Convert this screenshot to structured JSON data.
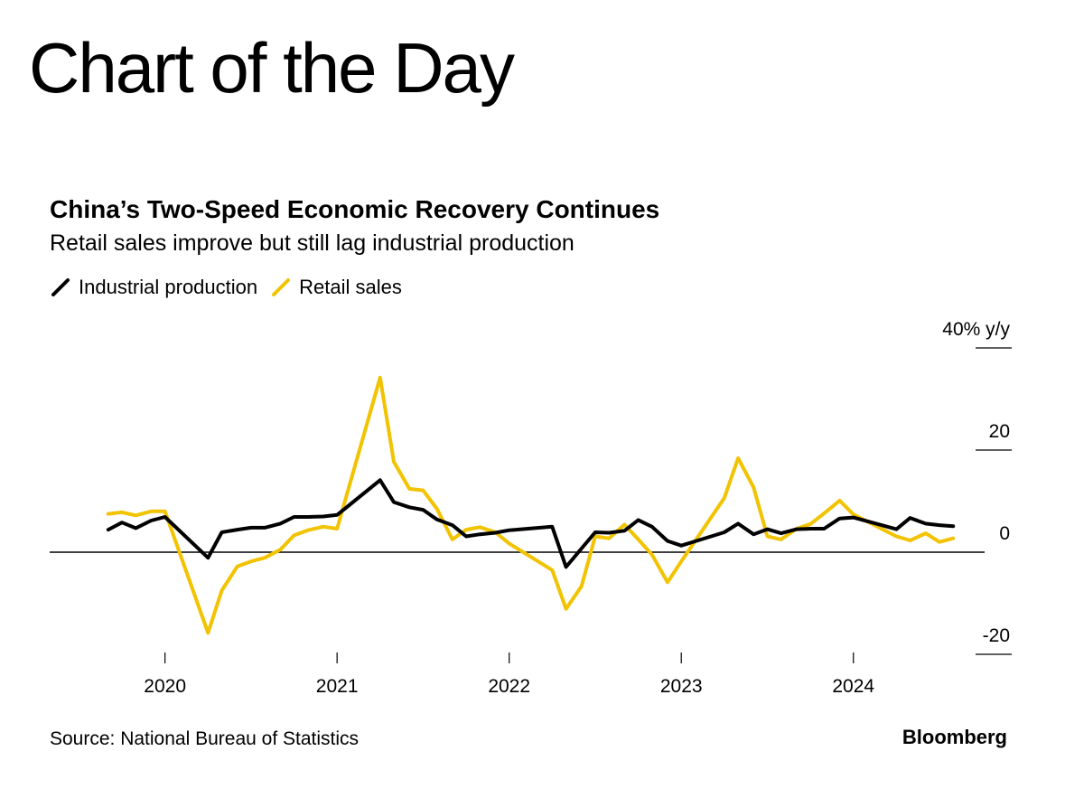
{
  "header": {
    "title": "Chart of the Day"
  },
  "chart_data": {
    "type": "line",
    "title": "China’s Two-Speed Economic Recovery Continues",
    "subtitle": "Retail sales improve but still lag industrial production",
    "unit_label": "40% y/y",
    "y_ticks": [
      "20",
      "0",
      "-20"
    ],
    "ylim": [
      -20,
      40
    ],
    "x_ticks": [
      "2020",
      "2021",
      "2022",
      "2023",
      "2024"
    ],
    "xlim": [
      2019.33,
      2024.92
    ],
    "legend_position": "top-left",
    "series": [
      {
        "name": "Industrial production",
        "color": "#000000",
        "points": [
          [
            2019.67,
            4.4
          ],
          [
            2019.75,
            5.8
          ],
          [
            2019.83,
            4.7
          ],
          [
            2019.92,
            6.2
          ],
          [
            2020.0,
            6.9
          ],
          [
            2020.25,
            -1.1
          ],
          [
            2020.33,
            3.9
          ],
          [
            2020.42,
            4.4
          ],
          [
            2020.5,
            4.8
          ],
          [
            2020.58,
            4.8
          ],
          [
            2020.67,
            5.6
          ],
          [
            2020.75,
            6.9
          ],
          [
            2020.83,
            6.9
          ],
          [
            2020.92,
            7.0
          ],
          [
            2021.0,
            7.3
          ],
          [
            2021.25,
            14.1
          ],
          [
            2021.33,
            9.8
          ],
          [
            2021.42,
            8.8
          ],
          [
            2021.5,
            8.3
          ],
          [
            2021.58,
            6.4
          ],
          [
            2021.67,
            5.3
          ],
          [
            2021.75,
            3.1
          ],
          [
            2021.83,
            3.5
          ],
          [
            2021.92,
            3.8
          ],
          [
            2022.0,
            4.3
          ],
          [
            2022.25,
            5.0
          ],
          [
            2022.33,
            -2.9
          ],
          [
            2022.42,
            0.7
          ],
          [
            2022.5,
            3.9
          ],
          [
            2022.58,
            3.8
          ],
          [
            2022.67,
            4.2
          ],
          [
            2022.75,
            6.3
          ],
          [
            2022.83,
            5.0
          ],
          [
            2022.92,
            2.2
          ],
          [
            2023.0,
            1.3
          ],
          [
            2023.25,
            3.9
          ],
          [
            2023.33,
            5.6
          ],
          [
            2023.42,
            3.5
          ],
          [
            2023.5,
            4.5
          ],
          [
            2023.58,
            3.7
          ],
          [
            2023.67,
            4.5
          ],
          [
            2023.75,
            4.6
          ],
          [
            2023.83,
            4.6
          ],
          [
            2023.92,
            6.6
          ],
          [
            2024.0,
            6.8
          ],
          [
            2024.25,
            4.5
          ],
          [
            2024.33,
            6.7
          ],
          [
            2024.42,
            5.6
          ],
          [
            2024.5,
            5.3
          ],
          [
            2024.58,
            5.1
          ]
        ]
      },
      {
        "name": "Retail sales",
        "color": "#f2c300",
        "points": [
          [
            2019.67,
            7.5
          ],
          [
            2019.75,
            7.8
          ],
          [
            2019.83,
            7.2
          ],
          [
            2019.92,
            8.0
          ],
          [
            2020.0,
            8.0
          ],
          [
            2020.25,
            -15.8
          ],
          [
            2020.33,
            -7.5
          ],
          [
            2020.42,
            -2.8
          ],
          [
            2020.5,
            -1.8
          ],
          [
            2020.58,
            -1.1
          ],
          [
            2020.67,
            0.5
          ],
          [
            2020.75,
            3.3
          ],
          [
            2020.83,
            4.3
          ],
          [
            2020.92,
            5.0
          ],
          [
            2021.0,
            4.6
          ],
          [
            2021.25,
            34.2
          ],
          [
            2021.33,
            17.7
          ],
          [
            2021.42,
            12.4
          ],
          [
            2021.5,
            12.1
          ],
          [
            2021.58,
            8.5
          ],
          [
            2021.67,
            2.5
          ],
          [
            2021.75,
            4.4
          ],
          [
            2021.83,
            4.9
          ],
          [
            2021.92,
            3.9
          ],
          [
            2022.0,
            1.7
          ],
          [
            2022.25,
            -3.5
          ],
          [
            2022.33,
            -11.1
          ],
          [
            2022.42,
            -6.7
          ],
          [
            2022.5,
            3.1
          ],
          [
            2022.58,
            2.7
          ],
          [
            2022.67,
            5.4
          ],
          [
            2022.75,
            2.5
          ],
          [
            2022.83,
            -0.5
          ],
          [
            2022.92,
            -5.9
          ],
          [
            2023.0,
            -1.8
          ],
          [
            2023.25,
            10.6
          ],
          [
            2023.33,
            18.4
          ],
          [
            2023.42,
            12.7
          ],
          [
            2023.5,
            3.1
          ],
          [
            2023.58,
            2.5
          ],
          [
            2023.67,
            4.6
          ],
          [
            2023.75,
            5.5
          ],
          [
            2023.83,
            7.6
          ],
          [
            2023.92,
            10.1
          ],
          [
            2024.0,
            7.4
          ],
          [
            2024.25,
            3.1
          ],
          [
            2024.33,
            2.3
          ],
          [
            2024.42,
            3.7
          ],
          [
            2024.5,
            2.0
          ],
          [
            2024.58,
            2.7
          ]
        ]
      }
    ]
  },
  "footer": {
    "source": "Source: National Bureau of Statistics",
    "brand": "Bloomberg"
  }
}
